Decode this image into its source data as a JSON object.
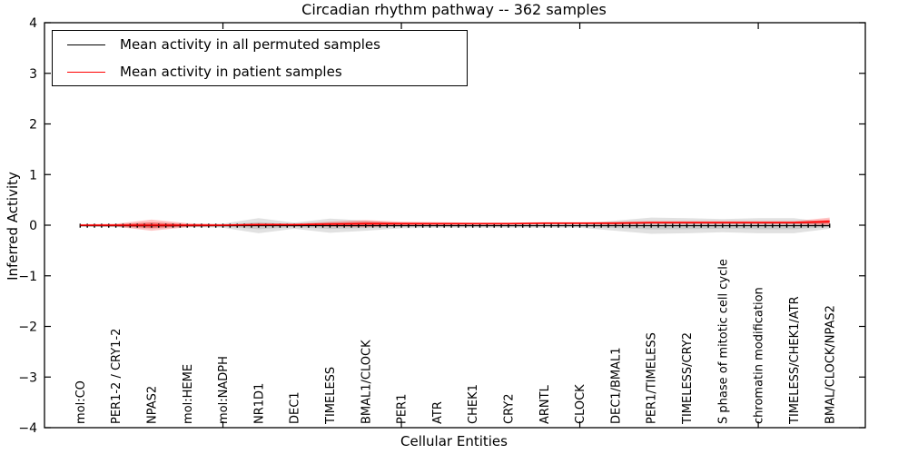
{
  "chart_data": {
    "type": "line",
    "title": "Circadian rhythm pathway -- 362 samples",
    "xlabel": "Cellular Entities",
    "ylabel": "Inferred Activity",
    "ylim": [
      -4,
      4
    ],
    "xlim": [
      0,
      23
    ],
    "yticks": [
      4,
      3,
      2,
      1,
      0,
      -1,
      -2,
      -3,
      -4
    ],
    "xticks": [
      5,
      10,
      15,
      20
    ],
    "grid": false,
    "legend_position": "upper left",
    "categories": [
      "mol:CO",
      "PER1-2 / CRY1-2",
      "NPAS2",
      "mol:HEME",
      "mol:NADPH",
      "NR1D1",
      "DEC1",
      "TIMELESS",
      "BMAL1/CLOCK",
      "PER1",
      "ATR",
      "CHEK1",
      "CRY2",
      "ARNTL",
      "CLOCK",
      "DEC1/BMAL1",
      "PER1/TIMELESS",
      "TIMELESS/CRY2",
      "S phase of mitotic cell cycle",
      "chromatin modification",
      "TIMELESS/CHEK1/ATR",
      "BMAL/CLOCK/NPAS2"
    ],
    "x": [
      1,
      2,
      3,
      4,
      5,
      6,
      7,
      8,
      9,
      10,
      11,
      12,
      13,
      14,
      15,
      16,
      17,
      18,
      19,
      20,
      21,
      22
    ],
    "series": [
      {
        "name": "Mean activity in all permuted samples",
        "color": "#000000",
        "band_color": "#b0b0b0",
        "marker": "|",
        "marker_step": 0.2,
        "values": [
          -0.01,
          -0.01,
          -0.01,
          -0.01,
          -0.01,
          -0.01,
          -0.01,
          -0.01,
          -0.01,
          -0.01,
          -0.01,
          -0.01,
          -0.01,
          -0.01,
          -0.01,
          -0.01,
          -0.01,
          -0.01,
          -0.01,
          -0.01,
          -0.01,
          -0.01
        ],
        "std": [
          0.02,
          0.03,
          0.06,
          0.03,
          0.04,
          0.15,
          0.06,
          0.14,
          0.1,
          0.05,
          0.04,
          0.04,
          0.04,
          0.04,
          0.04,
          0.1,
          0.16,
          0.15,
          0.13,
          0.15,
          0.15,
          0.06
        ]
      },
      {
        "name": "Mean activity in patient samples",
        "color": "#ff0000",
        "band_color": "#ff2d2d",
        "marker": "none",
        "values": [
          0,
          0,
          0,
          0,
          0,
          0.01,
          0.01,
          0.02,
          0.03,
          0.03,
          0.03,
          0.03,
          0.03,
          0.04,
          0.04,
          0.04,
          0.05,
          0.05,
          0.05,
          0.05,
          0.05,
          0.07
        ],
        "std": [
          0.02,
          0.03,
          0.11,
          0.04,
          0.02,
          0.03,
          0.02,
          0.05,
          0.07,
          0.04,
          0.03,
          0.02,
          0.02,
          0.02,
          0.02,
          0.03,
          0.03,
          0.03,
          0.03,
          0.03,
          0.03,
          0.08
        ]
      }
    ]
  }
}
